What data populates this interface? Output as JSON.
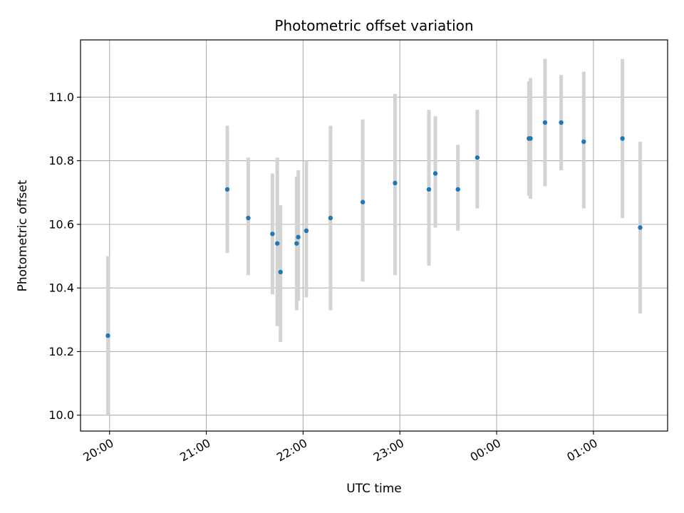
{
  "chart_data": {
    "type": "scatter",
    "title": "Photometric offset variation",
    "xlabel": "UTC time",
    "ylabel": "Photometric offset",
    "x_axis": {
      "kind": "time",
      "range": [
        "19:42",
        "01:46"
      ],
      "ticks": [
        {
          "time": "20:00",
          "label": "20:00"
        },
        {
          "time": "21:00",
          "label": "21:00"
        },
        {
          "time": "22:00",
          "label": "22:00"
        },
        {
          "time": "23:00",
          "label": "23:00"
        },
        {
          "time": "00:00",
          "label": "00:00"
        },
        {
          "time": "01:00",
          "label": "01:00"
        }
      ]
    },
    "y_axis": {
      "range": [
        9.95,
        11.18
      ],
      "ticks": [
        {
          "value": 10.0,
          "label": "10.0"
        },
        {
          "value": 10.2,
          "label": "10.2"
        },
        {
          "value": 10.4,
          "label": "10.4"
        },
        {
          "value": 10.6,
          "label": "10.6"
        },
        {
          "value": 10.8,
          "label": "10.8"
        },
        {
          "value": 11.0,
          "label": "11.0"
        }
      ]
    },
    "grid": true,
    "colors": {
      "point": "#1f77b4",
      "errorbar": "#d3d3d3",
      "grid": "#b0b0b0"
    },
    "points": [
      {
        "time": "19:59",
        "y": 10.25,
        "err_low": 10.0,
        "err_high": 10.5
      },
      {
        "time": "21:13",
        "y": 10.71,
        "err_low": 10.51,
        "err_high": 10.91
      },
      {
        "time": "21:26",
        "y": 10.62,
        "err_low": 10.44,
        "err_high": 10.81
      },
      {
        "time": "21:41",
        "y": 10.57,
        "err_low": 10.38,
        "err_high": 10.76
      },
      {
        "time": "21:44",
        "y": 10.54,
        "err_low": 10.28,
        "err_high": 10.81
      },
      {
        "time": "21:46",
        "y": 10.45,
        "err_low": 10.23,
        "err_high": 10.66
      },
      {
        "time": "21:56",
        "y": 10.54,
        "err_low": 10.33,
        "err_high": 10.75
      },
      {
        "time": "21:57",
        "y": 10.56,
        "err_low": 10.36,
        "err_high": 10.77
      },
      {
        "time": "22:02",
        "y": 10.58,
        "err_low": 10.37,
        "err_high": 10.8
      },
      {
        "time": "22:17",
        "y": 10.62,
        "err_low": 10.33,
        "err_high": 10.91
      },
      {
        "time": "22:37",
        "y": 10.67,
        "err_low": 10.42,
        "err_high": 10.93
      },
      {
        "time": "22:57",
        "y": 10.73,
        "err_low": 10.44,
        "err_high": 11.01
      },
      {
        "time": "23:18",
        "y": 10.71,
        "err_low": 10.47,
        "err_high": 10.96
      },
      {
        "time": "23:22",
        "y": 10.76,
        "err_low": 10.59,
        "err_high": 10.94
      },
      {
        "time": "23:36",
        "y": 10.71,
        "err_low": 10.58,
        "err_high": 10.85
      },
      {
        "time": "23:48",
        "y": 10.81,
        "err_low": 10.65,
        "err_high": 10.96
      },
      {
        "time": "00:20",
        "y": 10.87,
        "err_low": 10.69,
        "err_high": 11.05
      },
      {
        "time": "00:21",
        "y": 10.87,
        "err_low": 10.68,
        "err_high": 11.06
      },
      {
        "time": "00:30",
        "y": 10.92,
        "err_low": 10.72,
        "err_high": 11.12
      },
      {
        "time": "00:40",
        "y": 10.92,
        "err_low": 10.77,
        "err_high": 11.07
      },
      {
        "time": "00:54",
        "y": 10.86,
        "err_low": 10.65,
        "err_high": 11.08
      },
      {
        "time": "01:18",
        "y": 10.87,
        "err_low": 10.62,
        "err_high": 11.12
      },
      {
        "time": "01:29",
        "y": 10.59,
        "err_low": 10.32,
        "err_high": 10.86
      }
    ]
  }
}
